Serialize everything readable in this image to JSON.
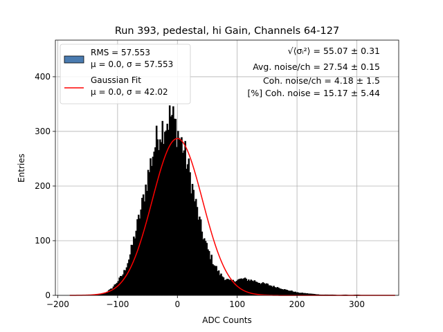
{
  "chart_data": {
    "type": "bar",
    "title": "Run 393, pedestal, hi Gain, Channels 64-127",
    "xlabel": "ADC Counts",
    "ylabel": "Entries",
    "xlim": [
      -204,
      370
    ],
    "ylim": [
      0,
      467
    ],
    "xticks": [
      -200,
      -100,
      0,
      100,
      200,
      300
    ],
    "xtick_labels": [
      "−200",
      "−100",
      "0",
      "100",
      "200",
      "300"
    ],
    "yticks": [
      0,
      100,
      200,
      300,
      400
    ],
    "ytick_labels": [
      "0",
      "100",
      "200",
      "300",
      "400"
    ],
    "grid": true,
    "legend_position": "top-left",
    "series": [
      {
        "name": "RMS = 57.553",
        "name_line2": "μ = 0.0, σ = 57.553",
        "kind": "histogram",
        "color": "#000000",
        "legend_color": "#4a7bb0",
        "x": [
          -180,
          -170,
          -160,
          -150,
          -140,
          -130,
          -120,
          -110,
          -100,
          -90,
          -80,
          -70,
          -60,
          -50,
          -40,
          -30,
          -20,
          -10,
          0,
          10,
          20,
          30,
          40,
          50,
          60,
          70,
          80,
          90,
          100,
          110,
          120,
          130,
          140,
          150,
          160,
          170,
          180,
          190,
          200,
          210,
          220,
          230,
          240,
          250,
          260,
          270,
          280,
          290,
          300,
          310,
          320,
          330,
          340,
          350,
          360,
          365
        ],
        "values": [
          0,
          0,
          0,
          0,
          1,
          2,
          5,
          12,
          25,
          40,
          70,
          115,
          160,
          215,
          265,
          300,
          315,
          330,
          300,
          270,
          225,
          170,
          120,
          85,
          60,
          40,
          30,
          25,
          28,
          30,
          28,
          26,
          22,
          20,
          16,
          14,
          10,
          8,
          5,
          4,
          3,
          2,
          1,
          1,
          1,
          0,
          1,
          0,
          1,
          0,
          0,
          0,
          0,
          0,
          0,
          0
        ]
      },
      {
        "name": "Gaussian Fit",
        "name_line2": "μ = 0.0, σ = 42.02",
        "kind": "line",
        "color": "#ff0000",
        "mu": 0.0,
        "sigma": 42.02,
        "amplitude": 287,
        "x_range": [
          -180,
          365
        ]
      }
    ],
    "annotations": [
      "√⟨σᵢ²⟩ = 55.07 ± 0.31",
      "Avg. noise/ch = 27.54 ± 0.15",
      "Coh. noise/ch = 4.18 ± 1.5",
      "[%] Coh. noise = 15.17 ± 5.44"
    ]
  }
}
